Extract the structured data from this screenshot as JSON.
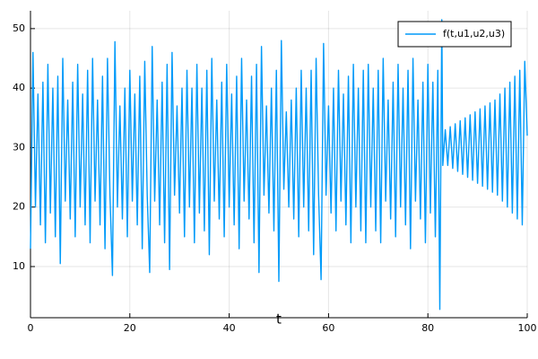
{
  "chart_data": {
    "type": "line",
    "xlabel": "t",
    "x": [
      0,
      0.5,
      1,
      1.5,
      2,
      2.5,
      3,
      3.5,
      4,
      4.5,
      5,
      5.5,
      6,
      6.5,
      7,
      7.5,
      8,
      8.5,
      9,
      9.5,
      10,
      10.5,
      11,
      11.5,
      12,
      12.5,
      13,
      13.5,
      14,
      14.5,
      15,
      15.5,
      16,
      16.5,
      17,
      17.5,
      18,
      18.5,
      19,
      19.5,
      20,
      20.5,
      21,
      21.5,
      22,
      22.5,
      23,
      23.5,
      24,
      24.5,
      25,
      25.5,
      26,
      26.5,
      27,
      27.5,
      28,
      28.5,
      29,
      29.5,
      30,
      30.5,
      31,
      31.5,
      32,
      32.5,
      33,
      33.5,
      34,
      34.5,
      35,
      35.5,
      36,
      36.5,
      37,
      37.5,
      38,
      38.5,
      39,
      39.5,
      40,
      40.5,
      41,
      41.5,
      42,
      42.5,
      43,
      43.5,
      44,
      44.5,
      45,
      45.5,
      46,
      46.5,
      47,
      47.5,
      48,
      48.5,
      49,
      49.5,
      50,
      50.5,
      51,
      51.5,
      52,
      52.5,
      53,
      53.5,
      54,
      54.5,
      55,
      55.5,
      56,
      56.5,
      57,
      57.5,
      58,
      58.5,
      59,
      59.5,
      60,
      60.5,
      61,
      61.5,
      62,
      62.5,
      63,
      63.5,
      64,
      64.5,
      65,
      65.5,
      66,
      66.5,
      67,
      67.5,
      68,
      68.5,
      69,
      69.5,
      70,
      70.5,
      71,
      71.5,
      72,
      72.5,
      73,
      73.5,
      74,
      74.5,
      75,
      75.5,
      76,
      76.5,
      77,
      77.5,
      78,
      78.5,
      79,
      79.5,
      80,
      80.5,
      81,
      81.5,
      82,
      82.4,
      82.8,
      83,
      83.5,
      84,
      84.5,
      85,
      85.5,
      86,
      86.5,
      87,
      87.5,
      88,
      88.5,
      89,
      89.5,
      90,
      90.5,
      91,
      91.5,
      92,
      92.5,
      93,
      93.5,
      94,
      94.5,
      95,
      95.5,
      96,
      96.5,
      97,
      97.5,
      98,
      98.5,
      99,
      99.5,
      100
    ],
    "series": [
      {
        "name": "f(t,u1,u2,u3)",
        "color": "#009af9",
        "values": [
          13,
          46,
          20,
          39,
          17,
          41,
          14,
          44,
          19,
          40,
          15,
          42,
          10.5,
          45,
          21,
          38,
          18,
          41,
          15,
          44,
          20,
          39,
          17,
          43,
          14,
          45,
          21,
          38,
          17,
          42,
          13,
          45,
          22,
          8.5,
          47.8,
          20,
          37,
          18,
          40,
          15,
          43,
          21,
          39,
          17,
          42,
          13,
          44.5,
          22,
          9,
          47,
          21,
          38,
          17,
          41,
          14,
          44,
          9.5,
          46,
          22,
          37,
          19,
          40,
          15,
          43,
          20,
          40,
          14,
          44,
          19,
          40,
          16,
          43,
          12,
          45,
          21,
          38,
          18,
          41,
          15,
          44,
          20,
          39,
          17,
          42,
          13,
          45,
          21,
          38,
          18,
          42,
          14,
          44,
          9,
          47,
          22,
          37,
          19,
          40,
          16,
          43,
          7.5,
          48,
          23,
          36,
          20,
          38,
          18,
          40,
          15,
          43,
          20,
          40,
          16,
          43,
          12,
          45,
          22,
          7.8,
          47.5,
          22,
          37,
          19,
          40,
          16,
          43,
          21,
          39,
          17,
          42,
          14,
          44,
          20,
          40,
          16,
          43,
          14,
          44,
          20,
          40,
          16,
          43,
          14,
          45,
          21,
          38,
          18,
          41,
          15,
          44,
          20,
          40,
          17,
          43,
          13,
          45,
          21,
          38,
          18,
          41,
          14,
          44,
          19,
          41,
          15,
          43,
          2.8,
          51.5,
          27,
          33,
          27,
          33.5,
          26.5,
          34,
          26,
          34.5,
          25.5,
          35,
          25,
          35.5,
          24.5,
          36,
          24,
          36.5,
          23.5,
          37,
          23,
          37.5,
          22.5,
          38,
          22,
          39,
          21,
          40,
          20,
          41,
          19,
          42,
          18,
          43,
          17,
          44.5,
          32
        ]
      }
    ],
    "xlim": [
      0,
      100
    ],
    "xticks": [
      0,
      20,
      40,
      60,
      80,
      100
    ],
    "ylim": [
      1.4,
      53
    ],
    "yticks": [
      10,
      20,
      30,
      40,
      50
    ],
    "grid": true,
    "legend": "top-right"
  }
}
